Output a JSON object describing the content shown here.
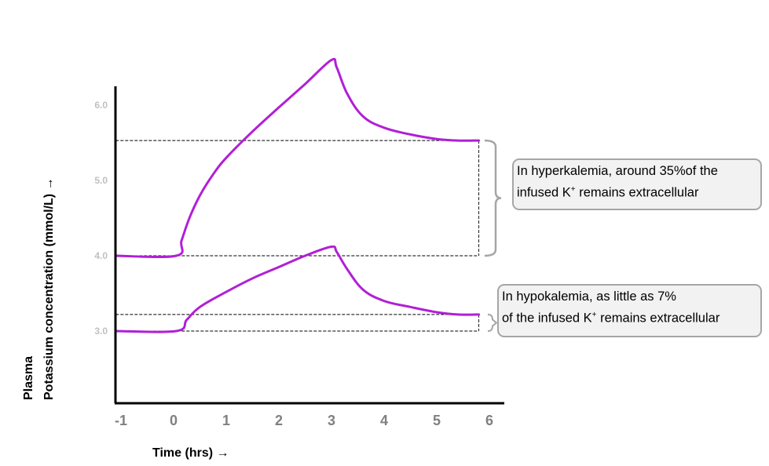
{
  "chart_data": {
    "type": "line",
    "title": "",
    "xlabel": "Time (hrs) →",
    "ylabel_line1": "Plasma",
    "ylabel_line2": "Potassium concentration (mmol/L) →",
    "x_ticks": [
      "-1",
      "0",
      "1",
      "2",
      "3",
      "4",
      "5",
      "6"
    ],
    "y_ticks": [
      "3.0",
      "4.0",
      "5.0",
      "6.0"
    ],
    "xlim": [
      -1.1,
      6.3
    ],
    "ylim": [
      2.05,
      6.1
    ],
    "line_color": "#b11fd6",
    "series": [
      {
        "x": [
          -1.1,
          0.05,
          0.15,
          0.3,
          0.5,
          0.75,
          1.0,
          1.5,
          2.0,
          2.5,
          3.0,
          3.1,
          3.3,
          3.6,
          4.0,
          4.5,
          5.0,
          5.4,
          5.8
        ],
        "y": [
          4.0,
          4.0,
          4.2,
          4.5,
          4.8,
          5.08,
          5.3,
          5.65,
          5.97,
          6.28,
          6.6,
          6.5,
          6.15,
          5.85,
          5.7,
          5.61,
          5.55,
          5.53,
          5.53
        ]
      },
      {
        "x": [
          -1.1,
          0.05,
          0.25,
          0.5,
          1.0,
          1.5,
          2.0,
          2.5,
          3.0,
          3.1,
          3.3,
          3.6,
          4.0,
          4.5,
          5.0,
          5.4,
          5.8
        ],
        "y": [
          3.0,
          3.0,
          3.15,
          3.32,
          3.52,
          3.7,
          3.85,
          4.0,
          4.12,
          4.05,
          3.82,
          3.55,
          3.4,
          3.32,
          3.25,
          3.22,
          3.22
        ]
      }
    ],
    "reference_lines": [
      {
        "from": [
          -1.1,
          4.0
        ],
        "to": [
          5.8,
          4.0
        ]
      },
      {
        "from": [
          -1.1,
          5.53
        ],
        "to": [
          5.8,
          5.53
        ]
      },
      {
        "from": [
          5.8,
          5.53
        ],
        "to": [
          5.8,
          4.0
        ]
      },
      {
        "from": [
          -1.1,
          3.0
        ],
        "to": [
          5.8,
          3.0
        ]
      },
      {
        "from": [
          -1.1,
          3.22
        ],
        "to": [
          5.8,
          3.22
        ]
      },
      {
        "from": [
          5.8,
          3.22
        ],
        "to": [
          5.8,
          3.0
        ]
      }
    ],
    "annotations": [
      {
        "name": "hyperkalemia",
        "y_range": [
          4.0,
          5.53
        ],
        "line1": "In hyperkalemia, around 35%of the",
        "line2_pre": "infused K",
        "line2_sup": "+",
        "line2_post": " remains extracellular"
      },
      {
        "name": "hypokalemia",
        "y_range": [
          3.0,
          3.22
        ],
        "line1": "In hypokalemia, as little as  7%",
        "line2_pre": " of the infused  K",
        "line2_sup": "+",
        "line2_post": " remains extracellular"
      }
    ]
  }
}
